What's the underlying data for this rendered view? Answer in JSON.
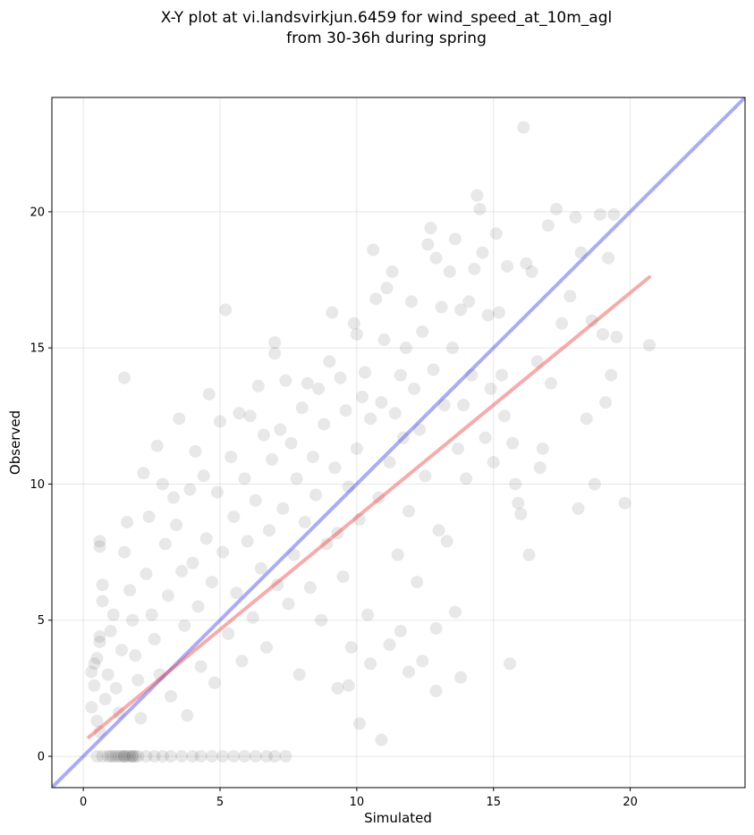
{
  "chart_data": {
    "type": "scatter",
    "title_line1": "X-Y plot at vi.landsvirkjun.6459 for wind_speed_at_10m_agl",
    "title_line2": "from 30-36h during spring",
    "xlabel": "Simulated",
    "ylabel": "Observed",
    "xlim": [
      -1.15,
      24.2
    ],
    "ylim": [
      -1.15,
      24.2
    ],
    "xticks": [
      0,
      5,
      10,
      15,
      20
    ],
    "yticks": [
      0,
      5,
      10,
      15,
      20
    ],
    "grid": true,
    "point_color": "#404040",
    "point_alpha": 0.12,
    "identity_line": {
      "x": [
        -1.15,
        24.2
      ],
      "y": [
        -1.15,
        24.2
      ],
      "color": "#4444ee"
    },
    "fit_line": {
      "x": [
        0.2,
        20.7
      ],
      "y": [
        0.7,
        17.6
      ],
      "color": "#ee4444"
    },
    "points": [
      [
        0.5,
        0
      ],
      [
        0.7,
        0
      ],
      [
        0.9,
        0
      ],
      [
        1.0,
        0
      ],
      [
        1.2,
        0
      ],
      [
        1.3,
        0
      ],
      [
        1.4,
        0
      ],
      [
        1.5,
        0
      ],
      [
        1.6,
        0
      ],
      [
        1.7,
        0
      ],
      [
        1.8,
        0
      ],
      [
        1.9,
        0
      ],
      [
        2.0,
        0
      ],
      [
        2.3,
        0
      ],
      [
        2.6,
        0
      ],
      [
        2.9,
        0
      ],
      [
        3.2,
        0
      ],
      [
        3.6,
        0
      ],
      [
        4.0,
        0
      ],
      [
        4.3,
        0
      ],
      [
        4.7,
        0
      ],
      [
        5.1,
        0
      ],
      [
        5.5,
        0
      ],
      [
        5.9,
        0
      ],
      [
        6.3,
        0
      ],
      [
        6.7,
        0
      ],
      [
        7.0,
        0
      ],
      [
        7.4,
        0
      ],
      [
        1.1,
        0
      ],
      [
        1.5,
        0
      ],
      [
        1.8,
        0
      ],
      [
        0.6,
        7.9
      ],
      [
        0.6,
        7.7
      ],
      [
        0.7,
        6.3
      ],
      [
        0.7,
        5.7
      ],
      [
        0.6,
        4.4
      ],
      [
        0.6,
        4.2
      ],
      [
        0.5,
        3.6
      ],
      [
        0.4,
        3.4
      ],
      [
        0.3,
        3.1
      ],
      [
        0.4,
        2.6
      ],
      [
        0.3,
        1.8
      ],
      [
        0.5,
        1.3
      ],
      [
        0.6,
        0.9
      ],
      [
        0.8,
        2.1
      ],
      [
        0.9,
        3.0
      ],
      [
        1.0,
        4.6
      ],
      [
        1.1,
        5.2
      ],
      [
        1.2,
        2.5
      ],
      [
        1.3,
        1.6
      ],
      [
        1.4,
        3.9
      ],
      [
        1.5,
        13.9
      ],
      [
        1.6,
        8.6
      ],
      [
        1.5,
        7.5
      ],
      [
        1.7,
        6.1
      ],
      [
        1.8,
        5.0
      ],
      [
        1.9,
        3.7
      ],
      [
        2.0,
        2.8
      ],
      [
        2.1,
        1.4
      ],
      [
        2.2,
        10.4
      ],
      [
        2.3,
        6.7
      ],
      [
        2.4,
        8.8
      ],
      [
        2.5,
        5.2
      ],
      [
        2.6,
        4.3
      ],
      [
        2.7,
        11.4
      ],
      [
        2.8,
        3.0
      ],
      [
        2.9,
        10.0
      ],
      [
        3.0,
        7.8
      ],
      [
        3.1,
        5.9
      ],
      [
        3.2,
        2.2
      ],
      [
        3.3,
        9.5
      ],
      [
        3.4,
        8.5
      ],
      [
        3.5,
        12.4
      ],
      [
        3.6,
        6.8
      ],
      [
        3.7,
        4.8
      ],
      [
        3.8,
        1.5
      ],
      [
        3.9,
        9.8
      ],
      [
        4.0,
        7.1
      ],
      [
        4.1,
        11.2
      ],
      [
        4.2,
        5.5
      ],
      [
        4.3,
        3.3
      ],
      [
        4.4,
        10.3
      ],
      [
        4.5,
        8.0
      ],
      [
        4.6,
        13.3
      ],
      [
        4.7,
        6.4
      ],
      [
        4.8,
        2.7
      ],
      [
        4.9,
        9.7
      ],
      [
        5.0,
        12.3
      ],
      [
        5.1,
        7.5
      ],
      [
        5.2,
        16.4
      ],
      [
        5.3,
        4.5
      ],
      [
        5.4,
        11.0
      ],
      [
        5.5,
        8.8
      ],
      [
        5.6,
        6.0
      ],
      [
        5.7,
        12.6
      ],
      [
        5.8,
        3.5
      ],
      [
        5.9,
        10.2
      ],
      [
        6.0,
        7.9
      ],
      [
        6.1,
        12.5
      ],
      [
        6.2,
        5.1
      ],
      [
        6.3,
        9.4
      ],
      [
        6.4,
        13.6
      ],
      [
        6.5,
        6.9
      ],
      [
        6.6,
        11.8
      ],
      [
        6.7,
        4.0
      ],
      [
        6.8,
        8.3
      ],
      [
        6.9,
        10.9
      ],
      [
        7.0,
        15.2
      ],
      [
        7.0,
        14.8
      ],
      [
        7.1,
        6.3
      ],
      [
        7.2,
        12.0
      ],
      [
        7.3,
        9.1
      ],
      [
        7.4,
        13.8
      ],
      [
        7.5,
        5.6
      ],
      [
        7.6,
        11.5
      ],
      [
        7.7,
        7.4
      ],
      [
        7.8,
        10.2
      ],
      [
        7.9,
        3.0
      ],
      [
        8.0,
        12.8
      ],
      [
        8.1,
        8.6
      ],
      [
        8.2,
        13.7
      ],
      [
        8.3,
        6.2
      ],
      [
        8.4,
        11.0
      ],
      [
        8.5,
        9.6
      ],
      [
        8.6,
        13.5
      ],
      [
        8.7,
        5.0
      ],
      [
        8.8,
        12.2
      ],
      [
        8.9,
        7.8
      ],
      [
        9.0,
        14.5
      ],
      [
        9.1,
        16.3
      ],
      [
        9.2,
        10.6
      ],
      [
        9.3,
        8.2
      ],
      [
        9.4,
        13.9
      ],
      [
        9.5,
        6.6
      ],
      [
        9.6,
        12.7
      ],
      [
        9.7,
        9.9
      ],
      [
        9.8,
        4.0
      ],
      [
        9.9,
        15.9
      ],
      [
        10.0,
        15.5
      ],
      [
        10.0,
        11.3
      ],
      [
        10.1,
        8.7
      ],
      [
        10.2,
        13.2
      ],
      [
        10.3,
        14.1
      ],
      [
        10.4,
        5.2
      ],
      [
        10.5,
        12.4
      ],
      [
        10.6,
        18.6
      ],
      [
        10.7,
        16.8
      ],
      [
        10.8,
        9.5
      ],
      [
        10.9,
        13.0
      ],
      [
        11.0,
        15.3
      ],
      [
        11.1,
        17.2
      ],
      [
        11.2,
        10.8
      ],
      [
        11.3,
        17.8
      ],
      [
        11.4,
        12.6
      ],
      [
        11.5,
        7.4
      ],
      [
        11.6,
        14.0
      ],
      [
        11.7,
        11.7
      ],
      [
        11.8,
        15.0
      ],
      [
        11.9,
        9.0
      ],
      [
        12.0,
        16.7
      ],
      [
        12.1,
        13.5
      ],
      [
        12.2,
        6.4
      ],
      [
        12.3,
        12.0
      ],
      [
        12.4,
        15.6
      ],
      [
        12.5,
        10.3
      ],
      [
        12.6,
        18.8
      ],
      [
        12.7,
        19.4
      ],
      [
        12.8,
        14.2
      ],
      [
        12.9,
        18.3
      ],
      [
        13.0,
        8.3
      ],
      [
        13.1,
        16.5
      ],
      [
        13.2,
        12.9
      ],
      [
        13.3,
        7.9
      ],
      [
        13.4,
        17.8
      ],
      [
        13.5,
        15.0
      ],
      [
        13.6,
        19.0
      ],
      [
        13.7,
        11.3
      ],
      [
        13.8,
        16.4
      ],
      [
        13.9,
        12.9
      ],
      [
        14.0,
        10.2
      ],
      [
        14.1,
        16.7
      ],
      [
        14.2,
        14.0
      ],
      [
        14.3,
        17.9
      ],
      [
        14.4,
        20.6
      ],
      [
        14.5,
        20.1
      ],
      [
        14.6,
        18.5
      ],
      [
        14.7,
        11.7
      ],
      [
        14.8,
        16.2
      ],
      [
        14.9,
        13.5
      ],
      [
        15.0,
        10.8
      ],
      [
        15.1,
        19.2
      ],
      [
        15.2,
        16.3
      ],
      [
        15.3,
        14.0
      ],
      [
        15.4,
        12.5
      ],
      [
        15.5,
        18.0
      ],
      [
        15.7,
        11.5
      ],
      [
        15.8,
        10.0
      ],
      [
        15.9,
        9.3
      ],
      [
        16.0,
        8.9
      ],
      [
        16.1,
        23.1
      ],
      [
        16.2,
        18.1
      ],
      [
        16.3,
        7.4
      ],
      [
        16.4,
        17.8
      ],
      [
        16.6,
        14.5
      ],
      [
        16.8,
        11.3
      ],
      [
        17.0,
        19.5
      ],
      [
        17.3,
        20.1
      ],
      [
        17.5,
        15.9
      ],
      [
        17.8,
        16.9
      ],
      [
        18.0,
        19.8
      ],
      [
        18.2,
        18.5
      ],
      [
        18.4,
        12.4
      ],
      [
        18.7,
        10.0
      ],
      [
        18.9,
        19.9
      ],
      [
        19.0,
        15.5
      ],
      [
        19.1,
        13.0
      ],
      [
        19.2,
        18.3
      ],
      [
        19.3,
        14.0
      ],
      [
        19.4,
        19.9
      ],
      [
        19.5,
        15.4
      ],
      [
        19.8,
        9.3
      ],
      [
        20.7,
        15.1
      ],
      [
        18.1,
        9.1
      ],
      [
        18.6,
        16.0
      ],
      [
        17.1,
        13.7
      ],
      [
        16.7,
        10.6
      ],
      [
        15.6,
        3.4
      ],
      [
        13.8,
        2.9
      ],
      [
        12.9,
        2.4
      ],
      [
        11.9,
        3.1
      ],
      [
        10.9,
        0.6
      ],
      [
        10.1,
        1.2
      ],
      [
        9.7,
        2.6
      ],
      [
        9.3,
        2.5
      ],
      [
        10.5,
        3.4
      ],
      [
        11.2,
        4.1
      ],
      [
        12.4,
        3.5
      ],
      [
        11.6,
        4.6
      ],
      [
        12.9,
        4.7
      ],
      [
        13.6,
        5.3
      ]
    ]
  }
}
